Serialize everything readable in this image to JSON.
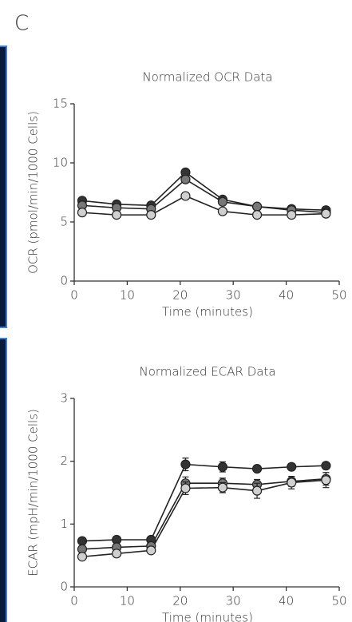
{
  "panel_label": "C",
  "chart_data": [
    {
      "type": "line",
      "title": "Normalized OCR Data",
      "x_label": "Time (minutes)",
      "y_label": "OCR (pmol/min/1000 Cells)",
      "x": [
        1.5,
        8,
        14.5,
        21,
        28,
        34.5,
        41,
        47.5
      ],
      "xlim": [
        0,
        50
      ],
      "xticks": [
        0,
        10,
        20,
        30,
        40,
        50
      ],
      "ylim": [
        0,
        15
      ],
      "yticks": [
        0,
        5,
        10,
        15
      ],
      "series": [
        {
          "color": "#333333",
          "values": [
            6.8,
            6.5,
            6.4,
            9.2,
            6.9,
            6.3,
            6.1,
            6.0
          ]
        },
        {
          "color": "#777777",
          "values": [
            6.4,
            6.2,
            6.1,
            8.6,
            6.7,
            6.3,
            6.0,
            5.8
          ]
        },
        {
          "color": "#d0d0d0",
          "values": [
            5.8,
            5.6,
            5.6,
            7.2,
            5.9,
            5.6,
            5.6,
            5.7
          ]
        }
      ]
    },
    {
      "type": "line",
      "title": "Normalized ECAR Data",
      "x_label": "Time (minutes)",
      "y_label": "ECAR (mpH/min/1000 Cells)",
      "x": [
        1.5,
        8,
        14.5,
        21,
        28,
        34.5,
        41,
        47.5
      ],
      "xlim": [
        0,
        50
      ],
      "xticks": [
        0,
        10,
        20,
        30,
        40,
        50
      ],
      "ylim": [
        0,
        3
      ],
      "yticks": [
        0,
        1,
        2,
        3
      ],
      "series": [
        {
          "color": "#333333",
          "values": [
            0.73,
            0.75,
            0.75,
            1.95,
            1.91,
            1.88,
            1.91,
            1.93
          ],
          "errors": [
            0.04,
            0.04,
            0.04,
            0.1,
            0.08,
            0.05,
            0.05,
            0.05
          ]
        },
        {
          "color": "#777777",
          "values": [
            0.6,
            0.63,
            0.65,
            1.65,
            1.65,
            1.63,
            1.68,
            1.72
          ],
          "errors": [
            0.04,
            0.04,
            0.04,
            0.1,
            0.08,
            0.08,
            0.08,
            0.1
          ]
        },
        {
          "color": "#d0d0d0",
          "values": [
            0.48,
            0.53,
            0.58,
            1.57,
            1.58,
            1.53,
            1.66,
            1.7
          ],
          "errors": [
            0.04,
            0.04,
            0.04,
            0.1,
            0.08,
            0.12,
            0.1,
            0.12
          ]
        }
      ]
    }
  ]
}
